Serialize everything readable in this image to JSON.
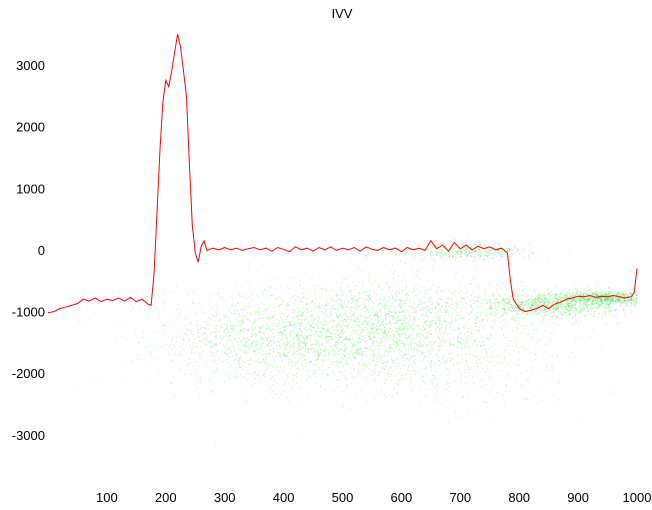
{
  "chart_data": {
    "type": "line",
    "title": "IVV",
    "xlabel": "",
    "ylabel": "",
    "xlim": [
      0,
      1000
    ],
    "ylim": [
      -3700,
      3600
    ],
    "x_ticks": [
      100,
      200,
      300,
      400,
      500,
      600,
      700,
      800,
      900,
      1000
    ],
    "y_ticks": [
      3000,
      2000,
      1000,
      0,
      -1000,
      -2000,
      -3000
    ],
    "grid": false,
    "legend": "none",
    "series": [
      {
        "color": "#ff0000",
        "points": [
          [
            0,
            -1020
          ],
          [
            10,
            -1000
          ],
          [
            20,
            -950
          ],
          [
            30,
            -930
          ],
          [
            40,
            -900
          ],
          [
            50,
            -870
          ],
          [
            60,
            -800
          ],
          [
            70,
            -830
          ],
          [
            80,
            -780
          ],
          [
            90,
            -840
          ],
          [
            100,
            -800
          ],
          [
            110,
            -820
          ],
          [
            120,
            -780
          ],
          [
            130,
            -830
          ],
          [
            140,
            -770
          ],
          [
            150,
            -840
          ],
          [
            160,
            -800
          ],
          [
            170,
            -880
          ],
          [
            175,
            -900
          ],
          [
            180,
            -400
          ],
          [
            185,
            600
          ],
          [
            190,
            1600
          ],
          [
            195,
            2400
          ],
          [
            200,
            2750
          ],
          [
            205,
            2650
          ],
          [
            210,
            2900
          ],
          [
            215,
            3200
          ],
          [
            220,
            3500
          ],
          [
            225,
            3300
          ],
          [
            230,
            2900
          ],
          [
            235,
            2500
          ],
          [
            240,
            1400
          ],
          [
            245,
            400
          ],
          [
            250,
            -50
          ],
          [
            255,
            -200
          ],
          [
            260,
            50
          ],
          [
            265,
            150
          ],
          [
            270,
            -10
          ],
          [
            280,
            30
          ],
          [
            290,
            0
          ],
          [
            300,
            40
          ],
          [
            310,
            0
          ],
          [
            320,
            30
          ],
          [
            330,
            -10
          ],
          [
            340,
            20
          ],
          [
            350,
            40
          ],
          [
            360,
            0
          ],
          [
            370,
            30
          ],
          [
            380,
            -20
          ],
          [
            390,
            40
          ],
          [
            400,
            10
          ],
          [
            410,
            -30
          ],
          [
            420,
            50
          ],
          [
            430,
            0
          ],
          [
            440,
            30
          ],
          [
            450,
            -20
          ],
          [
            460,
            40
          ],
          [
            470,
            0
          ],
          [
            480,
            50
          ],
          [
            490,
            -10
          ],
          [
            500,
            30
          ],
          [
            510,
            0
          ],
          [
            520,
            40
          ],
          [
            530,
            -20
          ],
          [
            540,
            50
          ],
          [
            550,
            10
          ],
          [
            560,
            -10
          ],
          [
            570,
            40
          ],
          [
            580,
            0
          ],
          [
            590,
            30
          ],
          [
            600,
            -30
          ],
          [
            610,
            40
          ],
          [
            620,
            0
          ],
          [
            630,
            30
          ],
          [
            640,
            -10
          ],
          [
            650,
            150
          ],
          [
            660,
            20
          ],
          [
            670,
            80
          ],
          [
            680,
            -20
          ],
          [
            690,
            120
          ],
          [
            700,
            20
          ],
          [
            710,
            80
          ],
          [
            720,
            0
          ],
          [
            730,
            60
          ],
          [
            740,
            20
          ],
          [
            750,
            50
          ],
          [
            760,
            0
          ],
          [
            770,
            30
          ],
          [
            780,
            -50
          ],
          [
            785,
            -500
          ],
          [
            790,
            -800
          ],
          [
            800,
            -950
          ],
          [
            810,
            -1000
          ],
          [
            820,
            -980
          ],
          [
            830,
            -950
          ],
          [
            840,
            -900
          ],
          [
            850,
            -950
          ],
          [
            860,
            -880
          ],
          [
            870,
            -850
          ],
          [
            880,
            -800
          ],
          [
            890,
            -780
          ],
          [
            900,
            -750
          ],
          [
            910,
            -760
          ],
          [
            920,
            -740
          ],
          [
            930,
            -770
          ],
          [
            940,
            -750
          ],
          [
            950,
            -760
          ],
          [
            960,
            -740
          ],
          [
            970,
            -760
          ],
          [
            980,
            -780
          ],
          [
            990,
            -760
          ],
          [
            995,
            -700
          ],
          [
            1000,
            -300
          ]
        ]
      }
    ],
    "density": {
      "color": "#00cc00",
      "clusters": [
        {
          "cx": 500,
          "cy": -1350,
          "sx": 140,
          "sy": 420,
          "n": 2600
        },
        {
          "cx": 350,
          "cy": -1500,
          "sx": 90,
          "sy": 300,
          "n": 500
        },
        {
          "cx": 620,
          "cy": -1150,
          "sx": 90,
          "sy": 350,
          "n": 700
        },
        {
          "cx": 720,
          "cy": -20,
          "sx": 50,
          "sy": 70,
          "n": 500
        },
        {
          "cx": 850,
          "cy": -880,
          "sx": 60,
          "sy": 110,
          "n": 1200
        },
        {
          "cx": 950,
          "cy": -770,
          "sx": 40,
          "sy": 60,
          "n": 900
        },
        {
          "cx": 700,
          "cy": -2000,
          "sx": 120,
          "sy": 300,
          "n": 250
        }
      ]
    }
  }
}
